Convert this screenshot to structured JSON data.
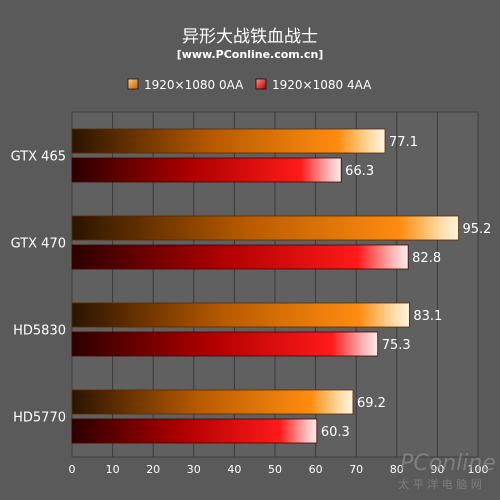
{
  "chart_data": {
    "type": "bar",
    "orientation": "horizontal",
    "title": "异形大战铁血战士",
    "subtitle": "[www.PConline.com.cn]",
    "categories": [
      "GTX 465",
      "GTX 470",
      "HD5830",
      "HD5770"
    ],
    "series": [
      {
        "name": "1920×1080 0AA",
        "values": [
          77.1,
          95.2,
          83.1,
          69.2
        ],
        "color": "#ff8c00"
      },
      {
        "name": "1920×1080 4AA",
        "values": [
          66.3,
          82.8,
          75.3,
          60.3
        ],
        "color": "#e01010"
      }
    ],
    "xlim": [
      0,
      100
    ],
    "xticks": [
      0,
      10,
      20,
      30,
      40,
      50,
      60,
      70,
      80,
      90,
      100
    ],
    "grid": true,
    "legend_position": "top"
  },
  "watermark": {
    "brand": "PConline",
    "tagline": "太 平 洋 电 脑 网"
  },
  "colors": {
    "background": "#5a5a5a",
    "plot_background": "#606060",
    "grid": "#3a3a3a"
  }
}
